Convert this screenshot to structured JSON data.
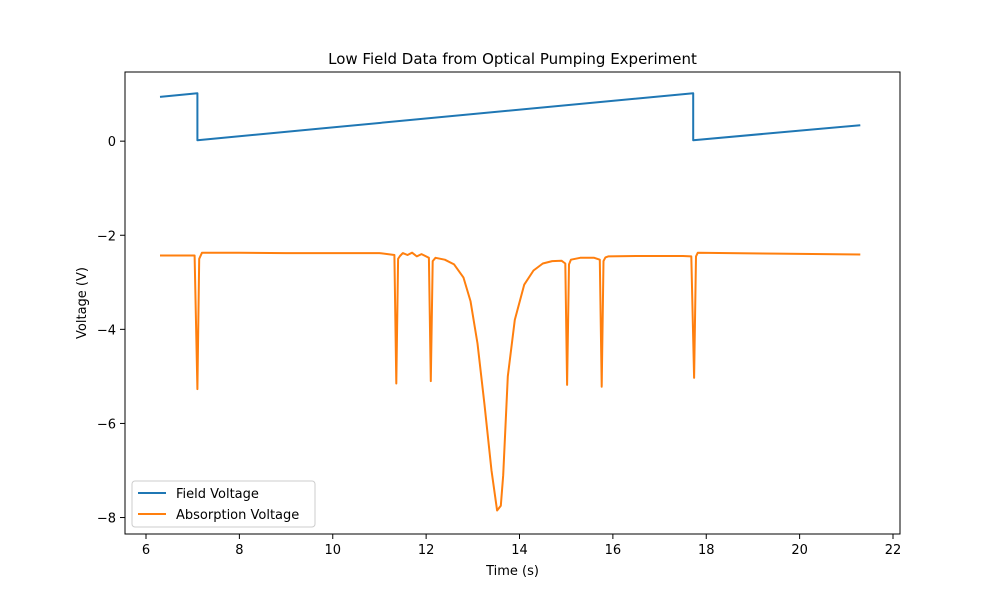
{
  "chart_data": {
    "type": "line",
    "title": "Low Field Data from Optical Pumping Experiment",
    "xlabel": "Time (s)",
    "ylabel": "Voltage (V)",
    "xlim": [
      5.55,
      22.15
    ],
    "ylim": [
      -8.35,
      1.47
    ],
    "xticks": [
      6,
      8,
      10,
      12,
      14,
      16,
      18,
      20,
      22
    ],
    "xtick_labels": [
      "6",
      "8",
      "10",
      "12",
      "14",
      "16",
      "18",
      "20",
      "22"
    ],
    "yticks": [
      0,
      -2,
      -4,
      -6,
      -8
    ],
    "ytick_labels": [
      "0",
      "−2",
      "−4",
      "−6",
      "−8"
    ],
    "grid": false,
    "legend_position": "lower-left",
    "series": [
      {
        "name": "Field Voltage",
        "color": "#1f77b4",
        "x": [
          6.3,
          7.1,
          7.1,
          17.72,
          17.72,
          21.3
        ],
        "y": [
          0.94,
          1.02,
          0.02,
          1.02,
          0.02,
          0.34
        ]
      },
      {
        "name": "Absorption Voltage",
        "color": "#ff7f0e",
        "x": [
          6.3,
          7.04,
          7.1,
          7.14,
          7.2,
          8.0,
          9.0,
          10.0,
          11.0,
          11.32,
          11.36,
          11.4,
          11.44,
          11.5,
          11.6,
          11.7,
          11.8,
          11.9,
          12.0,
          12.06,
          12.1,
          12.14,
          12.2,
          12.4,
          12.6,
          12.8,
          12.95,
          13.1,
          13.25,
          13.4,
          13.52,
          13.6,
          13.65,
          13.75,
          13.9,
          14.1,
          14.3,
          14.5,
          14.7,
          14.9,
          14.98,
          15.02,
          15.06,
          15.1,
          15.3,
          15.6,
          15.72,
          15.76,
          15.8,
          15.84,
          15.9,
          16.5,
          17.0,
          17.5,
          17.68,
          17.74,
          17.78,
          17.82,
          18.5,
          19.5,
          21.3
        ],
        "y": [
          -2.43,
          -2.43,
          -5.27,
          -2.5,
          -2.37,
          -2.37,
          -2.38,
          -2.38,
          -2.38,
          -2.42,
          -5.15,
          -2.5,
          -2.44,
          -2.38,
          -2.42,
          -2.37,
          -2.45,
          -2.4,
          -2.45,
          -2.48,
          -5.1,
          -2.55,
          -2.48,
          -2.52,
          -2.62,
          -2.9,
          -3.4,
          -4.3,
          -5.6,
          -7.0,
          -7.85,
          -7.75,
          -7.1,
          -5.0,
          -3.8,
          -3.05,
          -2.75,
          -2.6,
          -2.55,
          -2.54,
          -2.6,
          -5.18,
          -2.62,
          -2.52,
          -2.48,
          -2.48,
          -2.52,
          -5.22,
          -2.55,
          -2.47,
          -2.45,
          -2.44,
          -2.44,
          -2.44,
          -2.45,
          -5.03,
          -2.45,
          -2.37,
          -2.38,
          -2.39,
          -2.41
        ]
      }
    ]
  }
}
